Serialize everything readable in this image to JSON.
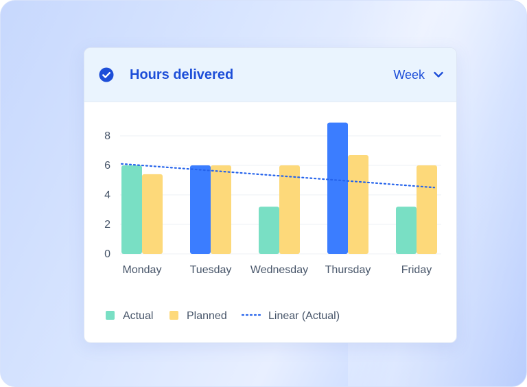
{
  "header": {
    "title": "Hours delivered",
    "period": "Week"
  },
  "icons": {
    "status": "check-circle-icon",
    "dropdown": "chevron-down-icon"
  },
  "colors": {
    "accent": "#1d4ed8",
    "actual": "#79dfc4",
    "actual_highlight": "#3b7dff",
    "planned": "#fdd97a",
    "trend": "#2563eb"
  },
  "chart_data": {
    "type": "bar",
    "categories": [
      "Monday",
      "Tuesday",
      "Wednesday",
      "Thursday",
      "Friday"
    ],
    "series": [
      {
        "name": "Actual",
        "values": [
          6,
          6,
          3.2,
          8.9,
          3.2
        ]
      },
      {
        "name": "Planned",
        "values": [
          5.4,
          6,
          6,
          6.7,
          6
        ]
      }
    ],
    "highlighted_actual": [
      "Tuesday",
      "Thursday"
    ],
    "trendline": {
      "name": "Linear (Actual)",
      "values": [
        6.1,
        5.7,
        5.3,
        4.9,
        4.5
      ],
      "style": "dotted"
    },
    "yticks": [
      0,
      2,
      4,
      6,
      8
    ],
    "ylim": [
      0,
      8
    ],
    "grid": true,
    "legend_position": "bottom-left"
  }
}
